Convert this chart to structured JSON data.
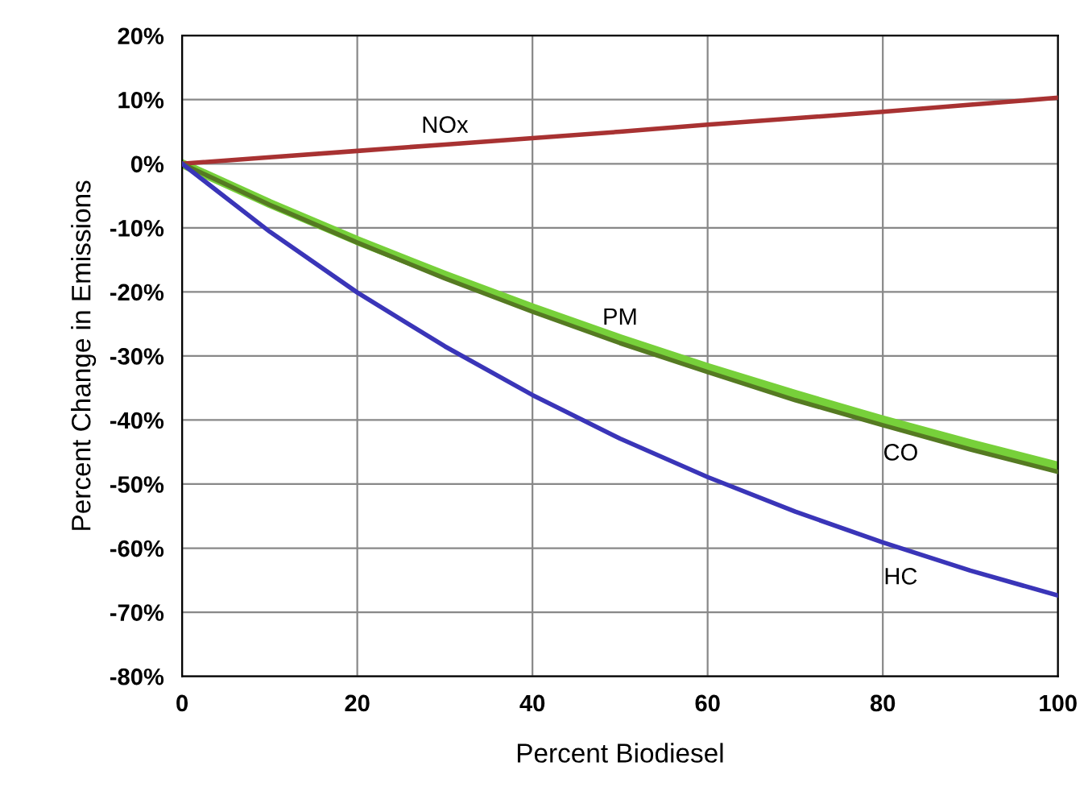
{
  "chart_data": {
    "type": "line",
    "xlabel": "Percent Biodiesel",
    "ylabel": "Percent Change in Emissions",
    "x": [
      0,
      10,
      20,
      30,
      40,
      50,
      60,
      70,
      80,
      90,
      100
    ],
    "series": [
      {
        "name": "NOx",
        "color": "#a83232",
        "values": [
          0,
          1.0,
          2.0,
          3.0,
          4.0,
          5.0,
          6.1,
          7.1,
          8.1,
          9.2,
          10.3
        ]
      },
      {
        "name": "PM",
        "color": "#77d03a",
        "values": [
          0,
          -6.2,
          -12.0,
          -17.4,
          -22.5,
          -27.3,
          -31.8,
          -36.0,
          -40.0,
          -43.7,
          -47.2
        ]
      },
      {
        "name": "CO",
        "color": "#557a22",
        "values": [
          0,
          -6.4,
          -12.3,
          -17.9,
          -23.1,
          -28.0,
          -32.5,
          -36.9,
          -40.8,
          -44.6,
          -48.1
        ]
      },
      {
        "name": "HC",
        "color": "#3a35b8",
        "values": [
          0,
          -10.6,
          -20.1,
          -28.5,
          -36.1,
          -42.9,
          -48.9,
          -54.3,
          -59.1,
          -63.5,
          -67.4
        ]
      }
    ],
    "xlim": [
      0,
      100
    ],
    "xticks": [
      0,
      20,
      40,
      60,
      80,
      100
    ],
    "ylim": [
      -80,
      20
    ],
    "yticks": [
      {
        "value": -80,
        "label": "-80%"
      },
      {
        "value": -70,
        "label": "-70%"
      },
      {
        "value": -60,
        "label": "-60%"
      },
      {
        "value": -50,
        "label": "-50%"
      },
      {
        "value": -40,
        "label": "-40%"
      },
      {
        "value": -30,
        "label": "-30%"
      },
      {
        "value": -20,
        "label": "-20%"
      },
      {
        "value": -10,
        "label": "-10%"
      },
      {
        "value": 0,
        "label": "0%"
      },
      {
        "value": 10,
        "label": "10%"
      },
      {
        "value": 20,
        "label": "20%"
      }
    ],
    "grid": true,
    "marker": "none",
    "line_style": "solid",
    "legend": false
  }
}
